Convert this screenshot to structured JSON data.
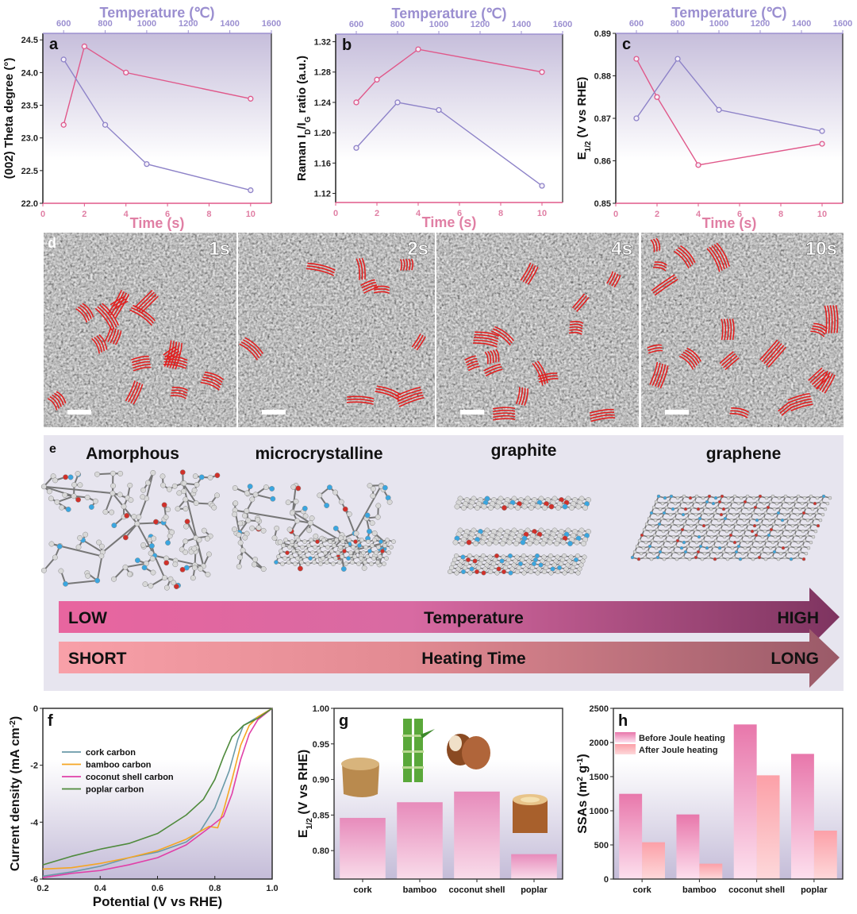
{
  "colors": {
    "pink": "#e0588a",
    "purple": "#8e83c8",
    "top_axis": "#9b8fd0",
    "fringe": "#e02020"
  },
  "chart_data": [
    {
      "type": "line",
      "panel": "a",
      "xlabel": "Time (s)",
      "x2label": "Temperature (℃)",
      "ylabel": [
        {
          "t": "(002) Theta degree (°)"
        }
      ],
      "xlim": [
        0,
        11
      ],
      "xticks": [
        0,
        2,
        4,
        6,
        8,
        10
      ],
      "x2lim": [
        500,
        1600
      ],
      "x2ticks": [
        600,
        800,
        1000,
        1200,
        1400,
        1600
      ],
      "ylim": [
        22.0,
        24.6
      ],
      "yticks": [
        "22.0",
        "22.5",
        "23.0",
        "23.5",
        "24.0",
        "24.5"
      ],
      "series": [
        {
          "name": "time",
          "axis": "bottom",
          "color": "#e0588a",
          "x": [
            1,
            2,
            4,
            10
          ],
          "y": [
            23.2,
            24.4,
            24.0,
            23.6
          ]
        },
        {
          "name": "temperature",
          "axis": "top",
          "color": "#8e83c8",
          "x": [
            600,
            800,
            1000,
            1500
          ],
          "y": [
            24.2,
            23.2,
            22.6,
            22.2
          ]
        }
      ]
    },
    {
      "type": "line",
      "panel": "b",
      "xlabel": "Time (s)",
      "x2label": "Temperature (℃)",
      "ylabel": [
        {
          "t": "Raman I"
        },
        {
          "t": "D",
          "sub": true
        },
        {
          "t": "/I"
        },
        {
          "t": "G",
          "sub": true
        },
        {
          "t": " ratio (a.u.)"
        }
      ],
      "xlim": [
        0,
        11
      ],
      "xticks": [
        0,
        2,
        4,
        6,
        8,
        10
      ],
      "x2lim": [
        500,
        1600
      ],
      "x2ticks": [
        600,
        800,
        1000,
        1200,
        1400,
        1600
      ],
      "ylim": [
        1.108,
        1.33
      ],
      "yticks": [
        "1.12",
        "1.16",
        "1.20",
        "1.24",
        "1.28",
        "1.32"
      ],
      "series": [
        {
          "name": "time",
          "axis": "bottom",
          "color": "#e0588a",
          "x": [
            1,
            2,
            4,
            10
          ],
          "y": [
            1.24,
            1.27,
            1.31,
            1.28
          ]
        },
        {
          "name": "temperature",
          "axis": "top",
          "color": "#8e83c8",
          "x": [
            600,
            800,
            1000,
            1500
          ],
          "y": [
            1.18,
            1.24,
            1.23,
            1.13
          ]
        }
      ]
    },
    {
      "type": "line",
      "panel": "c",
      "xlabel": "Time (s)",
      "x2label": "Temperature (℃)",
      "ylabel": [
        {
          "t": "E"
        },
        {
          "t": "1/2",
          "sub": true
        },
        {
          "t": " (V vs RHE)"
        }
      ],
      "xlim": [
        0,
        11
      ],
      "xticks": [
        0,
        2,
        4,
        6,
        8,
        10
      ],
      "x2lim": [
        500,
        1600
      ],
      "x2ticks": [
        600,
        800,
        1000,
        1200,
        1400,
        1600
      ],
      "ylim": [
        0.85,
        0.89
      ],
      "yticks": [
        "0.85",
        "0.86",
        "0.87",
        "0.88",
        "0.89"
      ],
      "series": [
        {
          "name": "time",
          "axis": "bottom",
          "color": "#e0588a",
          "x": [
            1,
            2,
            4,
            10
          ],
          "y": [
            0.884,
            0.875,
            0.859,
            0.864
          ]
        },
        {
          "name": "temperature",
          "axis": "top",
          "color": "#8e83c8",
          "x": [
            600,
            800,
            1000,
            1500
          ],
          "y": [
            0.87,
            0.884,
            0.872,
            0.867
          ]
        }
      ]
    },
    {
      "type": "line",
      "panel": "f",
      "xlabel": "Potential (V vs RHE)",
      "ylabel": [
        {
          "t": "Current density (mA cm"
        },
        {
          "t": "-2",
          "sup": true
        },
        {
          "t": ")"
        }
      ],
      "xlim": [
        0.2,
        1.0
      ],
      "xticks": [
        "0.2",
        "0.4",
        "0.6",
        "0.8",
        "1.0"
      ],
      "ylim": [
        -6,
        0
      ],
      "yticks": [
        "-6",
        "-4",
        "-2",
        "0"
      ],
      "legend": "top-left",
      "series": [
        {
          "name": "cork carbon",
          "color": "#6a9aa8",
          "x": [
            0.2,
            0.3,
            0.4,
            0.5,
            0.6,
            0.7,
            0.75,
            0.8,
            0.85,
            0.88,
            0.9,
            0.95,
            1.0
          ],
          "y": [
            -5.9,
            -5.75,
            -5.55,
            -5.25,
            -5.05,
            -4.7,
            -4.3,
            -3.5,
            -2.2,
            -1.1,
            -0.6,
            -0.3,
            0
          ]
        },
        {
          "name": "bamboo carbon",
          "color": "#f5a623",
          "x": [
            0.2,
            0.3,
            0.4,
            0.5,
            0.6,
            0.7,
            0.78,
            0.81,
            0.83,
            0.86,
            0.89,
            0.92,
            0.95,
            1.0
          ],
          "y": [
            -5.65,
            -5.6,
            -5.45,
            -5.25,
            -5.0,
            -4.6,
            -4.15,
            -4.2,
            -3.6,
            -2.5,
            -1.3,
            -0.6,
            -0.3,
            0
          ]
        },
        {
          "name": "coconut shell carbon",
          "color": "#e040a8",
          "x": [
            0.2,
            0.3,
            0.4,
            0.5,
            0.6,
            0.7,
            0.78,
            0.83,
            0.86,
            0.89,
            0.92,
            0.95,
            1.0
          ],
          "y": [
            -5.95,
            -5.8,
            -5.7,
            -5.5,
            -5.25,
            -4.8,
            -4.2,
            -3.8,
            -3.0,
            -1.8,
            -0.9,
            -0.4,
            0
          ]
        },
        {
          "name": "poplar carbon",
          "color": "#4f8a3c",
          "x": [
            0.2,
            0.3,
            0.4,
            0.5,
            0.6,
            0.7,
            0.76,
            0.8,
            0.83,
            0.86,
            0.9,
            0.95,
            1.0
          ],
          "y": [
            -5.5,
            -5.2,
            -4.95,
            -4.75,
            -4.4,
            -3.75,
            -3.2,
            -2.5,
            -1.7,
            -1.0,
            -0.6,
            -0.35,
            0
          ]
        }
      ]
    },
    {
      "type": "bar",
      "panel": "g",
      "ylabel": [
        {
          "t": "E"
        },
        {
          "t": "1/2",
          "sub": true
        },
        {
          "t": " (V vs RHE)"
        }
      ],
      "categories": [
        "cork",
        "bamboo",
        "coconut shell",
        "poplar"
      ],
      "values": [
        0.846,
        0.868,
        0.883,
        0.795
      ],
      "ylim": [
        0.76,
        1.0
      ],
      "yticks": [
        "0.80",
        "0.85",
        "0.90",
        "0.95",
        "1.00"
      ]
    },
    {
      "type": "bar",
      "panel": "h",
      "ylabel": [
        {
          "t": "SSAs (m"
        },
        {
          "t": "2",
          "sup": true
        },
        {
          "t": " g"
        },
        {
          "t": "-1",
          "sup": true
        },
        {
          "t": ")"
        }
      ],
      "categories": [
        "cork",
        "bamboo",
        "coconut shell",
        "poplar"
      ],
      "series": [
        {
          "name": "Before Joule heating",
          "values": [
            1248,
            946,
            2264,
            1833
          ]
        },
        {
          "name": "After Joule heating",
          "values": [
            539,
            225,
            1519,
            709
          ]
        }
      ],
      "ylim": [
        0,
        2500
      ],
      "yticks": [
        "0",
        "500",
        "1000",
        "1500",
        "2000",
        "2500"
      ],
      "legend": "top-left"
    }
  ],
  "tem": {
    "panel": "d",
    "images": [
      {
        "label": "1s"
      },
      {
        "label": "2s"
      },
      {
        "label": "4s"
      },
      {
        "label": "10s"
      }
    ]
  },
  "schematic": {
    "panel": "e",
    "structures": [
      "Amorphous",
      "microcrystalline",
      "graphite",
      "graphene"
    ],
    "arrows": [
      {
        "left": "LOW",
        "center": "Temperature",
        "right": "HIGH"
      },
      {
        "left": "SHORT",
        "center": "Heating Time",
        "right": "LONG"
      }
    ]
  }
}
